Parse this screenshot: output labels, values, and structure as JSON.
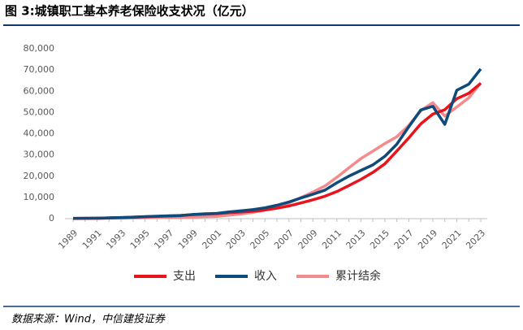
{
  "chart_data": {
    "type": "line",
    "title": "图 3:城镇职工基本养老保险收支状况（亿元）",
    "source": "数据来源：Wind，中信建投证券",
    "categories": [
      "1989",
      null,
      "1991",
      null,
      "1993",
      null,
      "1995",
      null,
      "1997",
      null,
      "1999",
      null,
      "2001",
      null,
      "2003",
      null,
      "2005",
      null,
      "2007",
      null,
      "2009",
      null,
      "2011",
      null,
      "2013",
      null,
      "2015",
      null,
      "2017",
      null,
      "2019",
      null,
      "2021",
      null,
      "2023"
    ],
    "series": [
      {
        "name": "支出",
        "color": "#e8141c",
        "values": [
          119,
          151,
          176,
          322,
          471,
          661,
          847,
          1032,
          1251,
          1512,
          1925,
          2116,
          2321,
          2843,
          3122,
          3502,
          4040,
          4897,
          5965,
          7390,
          8894,
          10555,
          12765,
          15562,
          18470,
          21755,
          25813,
          31854,
          38052,
          44645,
          49228,
          51301,
          56481,
          59035,
          63757
        ]
      },
      {
        "name": "收入",
        "color": "#0e4a7a",
        "values": [
          147,
          179,
          216,
          366,
          503,
          707,
          950,
          1172,
          1338,
          1459,
          1965,
          2278,
          2489,
          3172,
          3680,
          4258,
          5093,
          6310,
          7834,
          9740,
          11491,
          13420,
          16895,
          20001,
          22680,
          25310,
          29341,
          35058,
          43310,
          51168,
          52919,
          44376,
          60455,
          63324,
          70506
        ]
      },
      {
        "name": "累计结余",
        "color": "#f58a8c",
        "values": [
          68,
          98,
          145,
          220,
          258,
          305,
          430,
          578,
          683,
          588,
          734,
          947,
          1054,
          1608,
          2207,
          2975,
          4041,
          5489,
          7391,
          9931,
          12526,
          15365,
          19497,
          23941,
          28269,
          31800,
          35345,
          38580,
          43885,
          50901,
          54623,
          48317,
          52574,
          56890,
          63900
        ]
      }
    ],
    "ylim": [
      0,
      80000
    ],
    "yticks": [
      0,
      {
        "value": 10000,
        "label": "10,000"
      },
      {
        "value": 20000,
        "label": "20,000"
      },
      {
        "value": 30000,
        "label": "30,000"
      },
      {
        "value": 40000,
        "label": "40,000"
      },
      {
        "value": 50000,
        "label": "50,000"
      },
      {
        "value": 60000,
        "label": "60,000"
      },
      {
        "value": 70000,
        "label": "70,000"
      },
      {
        "value": 80000,
        "label": "80,000"
      }
    ],
    "grid": false
  }
}
